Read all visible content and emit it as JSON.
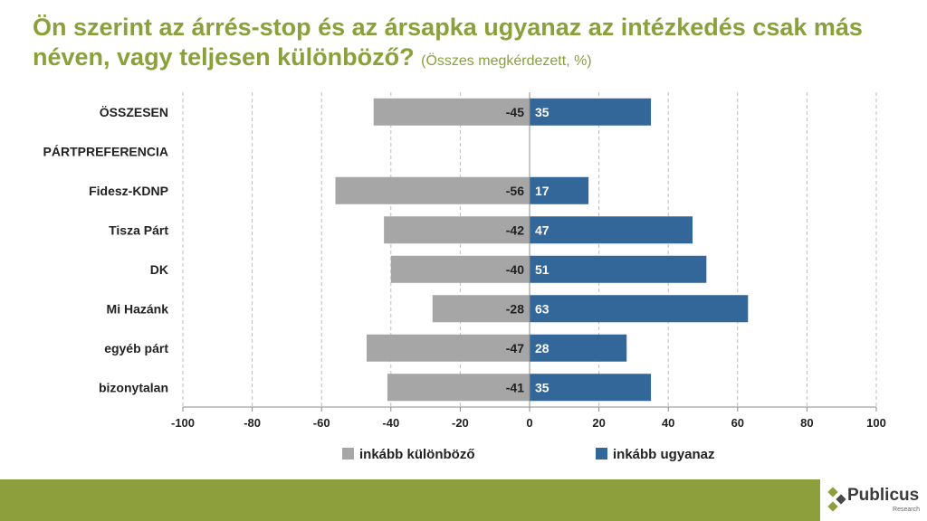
{
  "title": {
    "main": "Ön szerint az árrés-stop és az ársapka ugyanaz az intézkedés csak más néven, vagy teljesen különböző?",
    "subtitle": "(Összes megkérdezett, %)"
  },
  "colors": {
    "negative": "#a6a6a6",
    "positive": "#336699",
    "title": "#8aa03a",
    "footer": "#8c9f3c"
  },
  "chart_data": {
    "type": "bar",
    "orientation": "horizontal",
    "stacked": "diverging",
    "categories": [
      "ÖSSZESEN",
      "PÁRTPREFERENCIA",
      "Fidesz-KDNP",
      "Tisza Párt",
      "DK",
      "Mi Hazánk",
      "egyéb párt",
      "bizonytalan"
    ],
    "series": [
      {
        "name": "inkább különböző",
        "values": [
          -45,
          null,
          -56,
          -42,
          -40,
          -28,
          -47,
          -41
        ]
      },
      {
        "name": "inkább ugyanaz",
        "values": [
          35,
          null,
          17,
          47,
          51,
          63,
          28,
          35
        ]
      }
    ],
    "xlim": [
      -100,
      100
    ],
    "xticks": [
      -100,
      -80,
      -60,
      -40,
      -20,
      0,
      20,
      40,
      60,
      80,
      100
    ],
    "grid": true,
    "legend": "bottom"
  },
  "logo": {
    "name": "Publicus",
    "sub": "Research"
  }
}
